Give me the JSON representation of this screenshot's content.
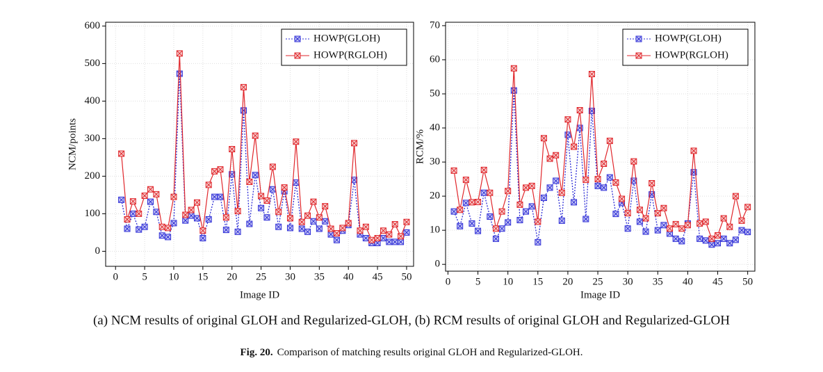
{
  "chart_data": [
    {
      "type": "line",
      "ylabel": "NCM/points",
      "xlabel": "Image ID",
      "x": [
        1,
        2,
        3,
        4,
        5,
        6,
        7,
        8,
        9,
        10,
        11,
        12,
        13,
        14,
        15,
        16,
        17,
        18,
        19,
        20,
        21,
        22,
        23,
        24,
        25,
        26,
        27,
        28,
        29,
        30,
        31,
        32,
        33,
        34,
        35,
        36,
        37,
        38,
        39,
        40,
        41,
        42,
        43,
        44,
        45,
        46,
        47,
        48,
        49,
        50
      ],
      "series": [
        {
          "name": "HOWP(GLOH)",
          "color": "#2b2bd6",
          "values": [
            137,
            60,
            100,
            58,
            65,
            132,
            105,
            42,
            38,
            75,
            473,
            82,
            95,
            88,
            35,
            85,
            145,
            145,
            57,
            205,
            52,
            375,
            73,
            203,
            115,
            90,
            165,
            65,
            160,
            62,
            183,
            60,
            52,
            80,
            60,
            80,
            45,
            30,
            55,
            70,
            190,
            45,
            35,
            22,
            22,
            35,
            25,
            25,
            25,
            50
          ]
        },
        {
          "name": "HOWP(RGLOH)",
          "color": "#e0262b",
          "values": [
            260,
            85,
            133,
            100,
            148,
            165,
            152,
            65,
            62,
            145,
            527,
            97,
            110,
            130,
            55,
            177,
            213,
            218,
            90,
            272,
            107,
            437,
            185,
            308,
            147,
            135,
            225,
            105,
            170,
            88,
            292,
            78,
            95,
            132,
            90,
            120,
            60,
            48,
            62,
            75,
            288,
            55,
            65,
            30,
            35,
            55,
            45,
            72,
            40,
            78
          ]
        }
      ],
      "xlim": [
        -1.7,
        51.2
      ],
      "xticks": [
        0,
        5,
        10,
        15,
        20,
        25,
        30,
        35,
        40,
        45,
        50
      ],
      "ylim": [
        -40,
        610
      ],
      "yticks": [
        0,
        100,
        200,
        300,
        400,
        500,
        600
      ],
      "grid": true,
      "legend": "upper right"
    },
    {
      "type": "line",
      "ylabel": "RCM/%",
      "xlabel": "Image ID",
      "x": [
        1,
        2,
        3,
        4,
        5,
        6,
        7,
        8,
        9,
        10,
        11,
        12,
        13,
        14,
        15,
        16,
        17,
        18,
        19,
        20,
        21,
        22,
        23,
        24,
        25,
        26,
        27,
        28,
        29,
        30,
        31,
        32,
        33,
        34,
        35,
        36,
        37,
        38,
        39,
        40,
        41,
        42,
        43,
        44,
        45,
        46,
        47,
        48,
        49,
        50
      ],
      "series": [
        {
          "name": "HOWP(GLOH)",
          "color": "#2b2bd6",
          "values": [
            15.5,
            11.2,
            18,
            12,
            9.8,
            21,
            14,
            7.5,
            10.5,
            12.3,
            51,
            13,
            15.5,
            17,
            6.5,
            19.5,
            22.5,
            24.5,
            12.8,
            38,
            18.2,
            40,
            13.3,
            45,
            23,
            22.5,
            25.5,
            14.8,
            18,
            10.5,
            24.5,
            12.5,
            9.6,
            20.5,
            10,
            11.5,
            9,
            7.5,
            6.8,
            12,
            27,
            7.5,
            7,
            5.8,
            6.2,
            7.5,
            6.2,
            7.2,
            10,
            9.5
          ]
        },
        {
          "name": "HOWP(RGLOH)",
          "color": "#e0262b",
          "values": [
            27.5,
            16,
            24.8,
            18.2,
            18.3,
            27.7,
            21,
            10.5,
            15.5,
            21.5,
            57.5,
            17.5,
            22.5,
            23,
            12.5,
            37,
            31,
            32,
            21,
            42.5,
            34.5,
            45.2,
            24.8,
            55.8,
            25,
            29.5,
            36.2,
            24,
            19.2,
            15,
            30.2,
            16,
            13.5,
            23.8,
            15,
            16.5,
            10.5,
            11.8,
            10.5,
            11.5,
            33.3,
            12,
            12.5,
            7.5,
            8.5,
            13.5,
            11,
            20,
            12.8,
            16.8
          ]
        }
      ],
      "xlim": [
        -0.4,
        51.2
      ],
      "xticks": [
        0,
        5,
        10,
        15,
        20,
        25,
        30,
        35,
        40,
        45,
        50
      ],
      "ylim": [
        -2,
        71
      ],
      "yticks": [
        0,
        10,
        20,
        30,
        40,
        50,
        60,
        70
      ],
      "grid": true,
      "legend": "upper right"
    }
  ],
  "subcaption": "(a) NCM results of original GLOH and Regularized-GLOH, (b) RCM results of original GLOH and Regularized-GLOH",
  "figure": {
    "label": "Fig. 20.",
    "text": "Comparison of matching results original GLOH and Regularized-GLOH."
  }
}
